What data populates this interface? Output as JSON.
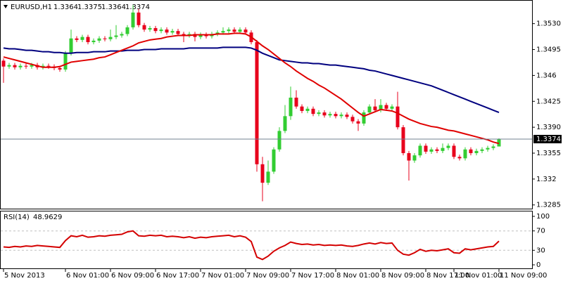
{
  "chart_data": [
    {
      "type": "candlestick",
      "title": "EURUSD,H1",
      "categories": [
        "5 Nov 2013",
        null,
        null,
        null,
        null,
        null,
        null,
        null,
        null,
        null,
        null,
        "6 Nov 01:00",
        null,
        null,
        null,
        null,
        null,
        null,
        null,
        "6 Nov 09:00",
        null,
        null,
        null,
        null,
        null,
        null,
        null,
        "6 Nov 17:00",
        null,
        null,
        null,
        null,
        null,
        null,
        null,
        "7 Nov 01:00",
        null,
        null,
        null,
        null,
        null,
        null,
        null,
        "7 Nov 09:00",
        null,
        null,
        null,
        null,
        null,
        null,
        null,
        "7 Nov 17:00",
        null,
        null,
        null,
        null,
        null,
        null,
        null,
        "8 Nov 01:00",
        null,
        null,
        null,
        null,
        null,
        null,
        null,
        "8 Nov 09:00",
        null,
        null,
        null,
        null,
        null,
        null,
        null,
        "8 Nov 17:00",
        null,
        null,
        null,
        null,
        "11 Nov 01:00",
        null,
        null,
        null,
        null,
        null,
        null,
        null,
        "11 Nov 09:00"
      ],
      "open": [
        1.348,
        1.3472,
        1.3474,
        1.3471,
        1.3473,
        1.3472,
        1.3474,
        1.3471,
        1.3473,
        1.3472,
        1.347,
        1.3468,
        1.349,
        1.351,
        1.3508,
        1.3512,
        1.3505,
        1.3507,
        1.351,
        1.3509,
        1.3512,
        1.3514,
        1.3516,
        1.3525,
        1.3545,
        1.3528,
        1.3522,
        1.3524,
        1.352,
        1.3522,
        1.3518,
        1.352,
        1.3516,
        1.3514,
        1.3516,
        1.3512,
        1.3515,
        1.3513,
        1.3516,
        1.3518,
        1.352,
        1.3522,
        1.3519,
        1.3522,
        1.3518,
        1.3505,
        1.334,
        1.3315,
        1.333,
        1.336,
        1.3385,
        1.3405,
        1.343,
        1.3418,
        1.3412,
        1.3415,
        1.3408,
        1.341,
        1.3406,
        1.3408,
        1.3405,
        1.3407,
        1.3404,
        1.3398,
        1.3395,
        1.341,
        1.3418,
        1.3413,
        1.342,
        1.3415,
        1.3418,
        1.339,
        1.3355,
        1.3345,
        1.3352,
        1.3365,
        1.3357,
        1.336,
        1.3358,
        1.3362,
        1.3365,
        1.335,
        1.3348,
        1.336,
        1.3355,
        1.3358,
        1.336,
        1.3362,
        1.3364
      ],
      "high": [
        1.3483,
        1.3477,
        1.3477,
        1.3476,
        1.3476,
        1.3477,
        1.3477,
        1.3476,
        1.3476,
        1.3475,
        1.3473,
        1.3493,
        1.3522,
        1.3513,
        1.3515,
        1.3515,
        1.351,
        1.3513,
        1.3513,
        1.3522,
        1.3528,
        1.3519,
        1.3528,
        1.3555,
        1.355,
        1.3531,
        1.3527,
        1.3527,
        1.3525,
        1.3525,
        1.3523,
        1.3523,
        1.3519,
        1.3519,
        1.3519,
        1.3518,
        1.3518,
        1.3519,
        1.3521,
        1.3525,
        1.3525,
        1.3525,
        1.3525,
        1.3525,
        1.3521,
        1.3508,
        1.335,
        1.3345,
        1.3363,
        1.339,
        1.342,
        1.3445,
        1.344,
        1.3421,
        1.3418,
        1.3418,
        1.3413,
        1.3413,
        1.3411,
        1.3411,
        1.341,
        1.341,
        1.3407,
        1.3401,
        1.3413,
        1.3421,
        1.3428,
        1.3428,
        1.3423,
        1.3421,
        1.3438,
        1.3393,
        1.3358,
        1.3355,
        1.3368,
        1.3368,
        1.3363,
        1.3363,
        1.3368,
        1.3368,
        1.3368,
        1.3353,
        1.3363,
        1.3363,
        1.3361,
        1.3363,
        1.3365,
        1.3367,
        1.3375
      ],
      "low": [
        1.345,
        1.3469,
        1.3468,
        1.3468,
        1.3469,
        1.3469,
        1.3468,
        1.3468,
        1.3469,
        1.3467,
        1.3465,
        1.3465,
        1.3487,
        1.3505,
        1.3505,
        1.3502,
        1.3502,
        1.3504,
        1.3506,
        1.3506,
        1.3509,
        1.3511,
        1.3513,
        1.3522,
        1.3525,
        1.3519,
        1.3519,
        1.3517,
        1.3517,
        1.3515,
        1.3515,
        1.3513,
        1.3505,
        1.3511,
        1.3506,
        1.3509,
        1.351,
        1.351,
        1.3513,
        1.3515,
        1.3517,
        1.3516,
        1.3516,
        1.3515,
        1.3502,
        1.333,
        1.329,
        1.3312,
        1.3327,
        1.3357,
        1.3382,
        1.34,
        1.3415,
        1.3409,
        1.3409,
        1.3405,
        1.3405,
        1.3403,
        1.3403,
        1.3402,
        1.3402,
        1.3401,
        1.3395,
        1.3385,
        1.3392,
        1.3407,
        1.341,
        1.341,
        1.3412,
        1.3412,
        1.3387,
        1.3352,
        1.3318,
        1.3342,
        1.3349,
        1.3354,
        1.3354,
        1.3355,
        1.3355,
        1.3359,
        1.3347,
        1.3345,
        1.3345,
        1.3352,
        1.3352,
        1.3355,
        1.3357,
        1.3359,
        1.3364
      ],
      "close": [
        1.3472,
        1.3474,
        1.3471,
        1.3473,
        1.3472,
        1.3474,
        1.3471,
        1.3473,
        1.3472,
        1.347,
        1.3468,
        1.349,
        1.351,
        1.3508,
        1.3512,
        1.3505,
        1.3507,
        1.351,
        1.3509,
        1.3512,
        1.3514,
        1.3516,
        1.3525,
        1.3545,
        1.3528,
        1.3522,
        1.3524,
        1.352,
        1.3522,
        1.3518,
        1.352,
        1.3516,
        1.3514,
        1.3516,
        1.3512,
        1.3515,
        1.3513,
        1.3516,
        1.3518,
        1.352,
        1.3522,
        1.3519,
        1.3522,
        1.3518,
        1.3505,
        1.334,
        1.3315,
        1.333,
        1.336,
        1.3385,
        1.3405,
        1.343,
        1.3418,
        1.3412,
        1.3415,
        1.3408,
        1.341,
        1.3406,
        1.3408,
        1.3405,
        1.3407,
        1.3404,
        1.3398,
        1.3395,
        1.341,
        1.3418,
        1.3413,
        1.342,
        1.3415,
        1.3418,
        1.339,
        1.3355,
        1.3345,
        1.3352,
        1.3365,
        1.3357,
        1.336,
        1.3358,
        1.3362,
        1.3365,
        1.335,
        1.3348,
        1.336,
        1.3355,
        1.3358,
        1.336,
        1.3362,
        1.3364,
        1.3374
      ],
      "up_color": "#32cd32",
      "down_color": "#e8001c",
      "series": [
        {
          "color": "#00007f",
          "values": [
            1.3497,
            1.3496,
            1.3496,
            1.3495,
            1.3494,
            1.3494,
            1.3493,
            1.3492,
            1.3492,
            1.3491,
            1.3491,
            1.349,
            1.349,
            1.3491,
            1.3491,
            1.3491,
            1.3492,
            1.3492,
            1.3492,
            1.3493,
            1.3493,
            1.3493,
            1.3494,
            1.3494,
            1.3494,
            1.3495,
            1.3495,
            1.3495,
            1.3496,
            1.3496,
            1.3496,
            1.3496,
            1.3496,
            1.3497,
            1.3497,
            1.3497,
            1.3497,
            1.3497,
            1.3497,
            1.3498,
            1.3498,
            1.3498,
            1.3498,
            1.3498,
            1.3497,
            1.3494,
            1.349,
            1.3487,
            1.3484,
            1.3481,
            1.348,
            1.3479,
            1.3478,
            1.3477,
            1.3477,
            1.3476,
            1.3476,
            1.3475,
            1.3474,
            1.3474,
            1.3473,
            1.3472,
            1.3471,
            1.347,
            1.3469,
            1.3467,
            1.3466,
            1.3464,
            1.3462,
            1.346,
            1.3458,
            1.3456,
            1.3454,
            1.3452,
            1.345,
            1.3448,
            1.3446,
            1.3443,
            1.344,
            1.3437,
            1.3434,
            1.3431,
            1.3428,
            1.3425,
            1.3422,
            1.3419,
            1.3416,
            1.3413,
            1.341
          ]
        },
        {
          "color": "#e00000",
          "values": [
            1.3485,
            1.3483,
            1.3481,
            1.3479,
            1.3477,
            1.3475,
            1.3473,
            1.3471,
            1.3471,
            1.3471,
            1.3472,
            1.3475,
            1.3478,
            1.3479,
            1.348,
            1.3481,
            1.3482,
            1.3484,
            1.3485,
            1.3488,
            1.3491,
            1.3494,
            1.3497,
            1.35,
            1.3504,
            1.3506,
            1.3508,
            1.3509,
            1.351,
            1.3512,
            1.3513,
            1.3514,
            1.3514,
            1.3514,
            1.3515,
            1.3515,
            1.3515,
            1.3515,
            1.3516,
            1.3516,
            1.3516,
            1.3517,
            1.3517,
            1.3516,
            1.3512,
            1.3506,
            1.35,
            1.3495,
            1.3489,
            1.3483,
            1.3477,
            1.3472,
            1.3466,
            1.3461,
            1.3456,
            1.3452,
            1.3447,
            1.3443,
            1.3438,
            1.3433,
            1.3428,
            1.3422,
            1.3416,
            1.341,
            1.3405,
            1.3408,
            1.3411,
            1.3414,
            1.3413,
            1.3412,
            1.3409,
            1.3405,
            1.3401,
            1.3398,
            1.3395,
            1.3393,
            1.3391,
            1.339,
            1.3388,
            1.3386,
            1.3385,
            1.3383,
            1.3381,
            1.3379,
            1.3377,
            1.3375,
            1.3373,
            1.337,
            1.3368
          ]
        }
      ],
      "ylim": [
        1.328,
        1.3561
      ],
      "yticks": [
        {
          "value": 1.353,
          "label": "1.3530"
        },
        1.3495,
        1.346,
        1.3425,
        {
          "value": 1.339,
          "label": "1.3390"
        },
        1.3355,
        1.332,
        1.3285
      ],
      "grid": false
    },
    {
      "type": "line",
      "title": "RSI(14)",
      "color": "#d40000",
      "values": [
        37,
        36,
        38,
        37,
        39,
        38,
        40,
        39,
        38,
        37,
        36,
        50,
        60,
        58,
        61,
        57,
        58,
        60,
        59,
        61,
        62,
        63,
        68,
        70,
        60,
        59,
        61,
        60,
        61,
        58,
        59,
        58,
        56,
        58,
        55,
        57,
        56,
        58,
        59,
        60,
        61,
        58,
        60,
        57,
        48,
        16,
        11,
        18,
        28,
        35,
        40,
        47,
        44,
        42,
        43,
        41,
        42,
        40,
        41,
        40,
        41,
        39,
        38,
        40,
        43,
        45,
        43,
        46,
        44,
        45,
        30,
        22,
        20,
        25,
        32,
        28,
        30,
        29,
        31,
        33,
        25,
        24,
        33,
        31,
        33,
        35,
        37,
        38,
        48.9629
      ],
      "ylim": [
        0,
        100
      ],
      "yticks": [
        100,
        70,
        30,
        0
      ],
      "grid": true
    }
  ]
}
